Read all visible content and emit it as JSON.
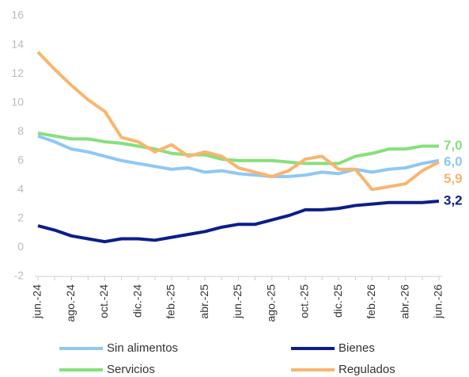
{
  "chart_data": {
    "type": "line",
    "categories": [
      "jun.-24",
      null,
      "ago.-24",
      null,
      "oct.-24",
      null,
      "dic.-24",
      null,
      "feb.-25",
      null,
      "abr.-25",
      null,
      "jun.-25",
      null,
      "ago.-25",
      null,
      "oct.-25",
      null,
      "dic.-25",
      null,
      "feb.-26",
      null,
      "abr.-26",
      null,
      "jun.-26"
    ],
    "ylim": [
      -2,
      16
    ],
    "yticks": [
      -2,
      0,
      2,
      4,
      6,
      8,
      10,
      12,
      14,
      16
    ],
    "grid": false,
    "legend": "bottom",
    "series": [
      {
        "name": "Sin alimentos",
        "color": "#8ec8f5",
        "values": [
          7.7,
          7.3,
          6.8,
          6.6,
          6.3,
          6.0,
          5.8,
          5.6,
          5.4,
          5.5,
          5.2,
          5.3,
          5.1,
          5.0,
          4.9,
          4.9,
          5.0,
          5.2,
          5.1,
          5.4,
          5.2,
          5.4,
          5.5,
          5.8,
          6.0
        ],
        "value_labels": [
          null,
          null,
          null,
          null,
          null,
          null,
          null,
          null,
          null,
          null,
          null,
          null,
          null,
          null,
          null,
          null,
          null,
          null,
          null,
          null,
          null,
          null,
          null,
          null,
          "6,0"
        ]
      },
      {
        "name": "Bienes",
        "color": "#0b1f8a",
        "values": [
          1.5,
          1.2,
          0.8,
          0.6,
          0.4,
          0.6,
          0.6,
          0.5,
          0.7,
          0.9,
          1.1,
          1.4,
          1.6,
          1.6,
          1.9,
          2.2,
          2.6,
          2.6,
          2.7,
          2.9,
          3.0,
          3.1,
          3.1,
          3.1,
          3.2
        ],
        "value_labels": [
          null,
          null,
          null,
          null,
          null,
          null,
          null,
          null,
          null,
          null,
          null,
          null,
          null,
          null,
          null,
          null,
          null,
          null,
          null,
          null,
          null,
          null,
          null,
          null,
          "3,2"
        ]
      },
      {
        "name": "Servicios",
        "color": "#86e07a",
        "values": [
          7.9,
          7.7,
          7.5,
          7.5,
          7.3,
          7.2,
          7.0,
          6.8,
          6.5,
          6.4,
          6.4,
          6.1,
          6.0,
          6.0,
          6.0,
          5.9,
          5.8,
          5.8,
          5.8,
          6.3,
          6.5,
          6.8,
          6.8,
          7.0,
          7.0
        ],
        "value_labels": [
          null,
          null,
          null,
          null,
          null,
          null,
          null,
          null,
          null,
          null,
          null,
          null,
          null,
          null,
          null,
          null,
          null,
          null,
          null,
          null,
          null,
          null,
          null,
          null,
          "7,0"
        ]
      },
      {
        "name": "Regulados",
        "color": "#f9b56e",
        "values": [
          13.5,
          12.3,
          11.2,
          10.2,
          9.4,
          7.6,
          7.3,
          6.6,
          7.1,
          6.3,
          6.6,
          6.3,
          5.5,
          5.2,
          4.9,
          5.3,
          6.1,
          6.3,
          5.4,
          5.4,
          4.0,
          4.2,
          4.4,
          5.3,
          5.9
        ],
        "value_labels": [
          null,
          null,
          null,
          null,
          null,
          null,
          null,
          null,
          null,
          null,
          null,
          null,
          null,
          null,
          null,
          null,
          null,
          null,
          null,
          null,
          null,
          null,
          null,
          null,
          "5,9"
        ]
      }
    ]
  }
}
